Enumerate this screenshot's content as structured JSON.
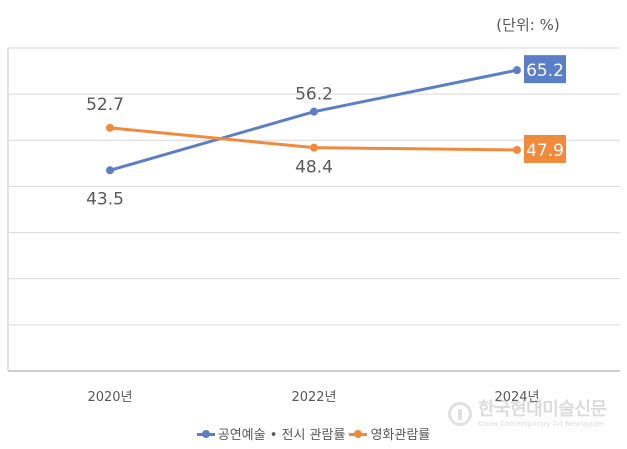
{
  "unit_label": "(단위: %)",
  "colors": {
    "series1": "#5b7fc6",
    "series2": "#f28a3c",
    "grid": "#d9d9d9",
    "label": "#595959"
  },
  "watermark": {
    "main": "한국현대미술신문",
    "sub": "Korea Contemporary Art Newspaper",
    "icon": "newspaper-logo-icon"
  },
  "chart_data": {
    "type": "line",
    "title": "",
    "xlabel": "",
    "ylabel": "",
    "categories": [
      "2020년",
      "2022년",
      "2024년"
    ],
    "ylim": [
      0,
      70
    ],
    "grid": true,
    "legend": "bottom",
    "series": [
      {
        "name": "공연예술 • 전시 관람률",
        "values": [
          43.5,
          56.2,
          65.2
        ],
        "labels": [
          "43.5",
          "56.2",
          "65.2"
        ]
      },
      {
        "name": "영화관람률",
        "values": [
          52.7,
          48.4,
          47.9
        ],
        "labels": [
          "52.7",
          "48.4",
          "47.9"
        ]
      }
    ]
  }
}
